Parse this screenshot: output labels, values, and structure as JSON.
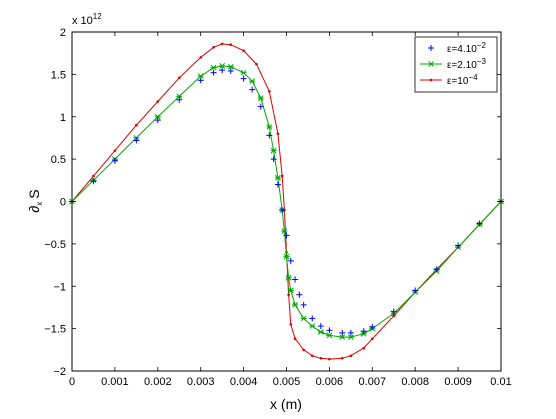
{
  "chart_data": {
    "type": "line",
    "title": "",
    "xlabel": "x (m)",
    "ylabel": "∂x S",
    "ylabel_main": "∂",
    "ylabel_sub": "x",
    "ylabel_rest": "S",
    "y_multiplier_base": "x 10",
    "y_multiplier_exp": "12",
    "xlim": [
      0,
      0.01
    ],
    "ylim": [
      -2,
      2
    ],
    "y_scale_factor": 1000000000000.0,
    "x_ticks": [
      0,
      0.001,
      0.002,
      0.003,
      0.004,
      0.005,
      0.006,
      0.007,
      0.008,
      0.009,
      0.01
    ],
    "x_tick_labels": [
      "0",
      "0.001",
      "0.002",
      "0.003",
      "0.004",
      "0.005",
      "0.006",
      "0.007",
      "0.008",
      "0.009",
      "0.01"
    ],
    "y_ticks": [
      -2,
      -1.5,
      -1,
      -0.5,
      0,
      0.5,
      1,
      1.5,
      2
    ],
    "y_tick_labels": [
      "−2",
      "−1.5",
      "−1",
      "−0.5",
      "0",
      "0.5",
      "1",
      "1.5",
      "2"
    ],
    "grid": false,
    "legend_position": "top-right",
    "series": [
      {
        "name": "ε=4.10−2",
        "legend_base": "ε=4.10",
        "legend_exp": "−2",
        "color": "#0000ff",
        "marker": "plus",
        "line": false,
        "x": [
          0,
          0.0005,
          0.001,
          0.0015,
          0.002,
          0.0025,
          0.003,
          0.0033,
          0.0035,
          0.0037,
          0.004,
          0.0042,
          0.0044,
          0.0046,
          0.0047,
          0.0048,
          0.0049,
          0.005,
          0.0051,
          0.0052,
          0.0053,
          0.0054,
          0.0056,
          0.0058,
          0.006,
          0.0063,
          0.0065,
          0.0068,
          0.007,
          0.0075,
          0.008,
          0.0085,
          0.009,
          0.0095,
          0.01
        ],
        "y": [
          0,
          0.24,
          0.48,
          0.72,
          0.96,
          1.2,
          1.43,
          1.52,
          1.55,
          1.54,
          1.45,
          1.32,
          1.12,
          0.78,
          0.5,
          0.2,
          -0.1,
          -0.4,
          -0.7,
          -0.92,
          -1.1,
          -1.22,
          -1.38,
          -1.47,
          -1.52,
          -1.55,
          -1.55,
          -1.53,
          -1.48,
          -1.3,
          -1.05,
          -0.8,
          -0.52,
          -0.26,
          0
        ]
      },
      {
        "name": "ε=2.10−3",
        "legend_base": "ε=2.10",
        "legend_exp": "−3",
        "color": "#00aa00",
        "marker": "x",
        "line": true,
        "x": [
          0,
          0.0005,
          0.001,
          0.0015,
          0.002,
          0.0025,
          0.003,
          0.0033,
          0.0035,
          0.0037,
          0.004,
          0.0042,
          0.0044,
          0.0046,
          0.0047,
          0.0048,
          0.0049,
          0.00495,
          0.005,
          0.00505,
          0.0051,
          0.0052,
          0.0054,
          0.0056,
          0.0058,
          0.006,
          0.0063,
          0.0065,
          0.0068,
          0.007,
          0.0075,
          0.008,
          0.0085,
          0.009,
          0.0095,
          0.01
        ],
        "y": [
          0,
          0.25,
          0.5,
          0.75,
          1.0,
          1.24,
          1.48,
          1.58,
          1.6,
          1.59,
          1.52,
          1.42,
          1.22,
          0.88,
          0.6,
          0.28,
          -0.1,
          -0.35,
          -0.65,
          -0.9,
          -1.05,
          -1.22,
          -1.38,
          -1.47,
          -1.54,
          -1.58,
          -1.6,
          -1.6,
          -1.56,
          -1.5,
          -1.32,
          -1.07,
          -0.82,
          -0.54,
          -0.27,
          0
        ]
      },
      {
        "name": "ε=10−4",
        "legend_base": "ε=10",
        "legend_exp": "−4",
        "color": "#dd0000",
        "marker": "dot",
        "line": true,
        "x": [
          0,
          0.0005,
          0.001,
          0.0015,
          0.002,
          0.0025,
          0.003,
          0.0033,
          0.0035,
          0.0037,
          0.004,
          0.0043,
          0.0046,
          0.0048,
          0.0049,
          0.00495,
          0.005,
          0.00505,
          0.0051,
          0.0052,
          0.0054,
          0.0056,
          0.0058,
          0.006,
          0.0063,
          0.0065,
          0.0068,
          0.007,
          0.0075,
          0.008,
          0.0085,
          0.009,
          0.0095,
          0.01
        ],
        "y": [
          0,
          0.3,
          0.6,
          0.9,
          1.18,
          1.46,
          1.7,
          1.82,
          1.86,
          1.85,
          1.78,
          1.62,
          1.3,
          0.8,
          0.3,
          -0.1,
          -0.6,
          -1.1,
          -1.45,
          -1.62,
          -1.75,
          -1.82,
          -1.85,
          -1.86,
          -1.85,
          -1.82,
          -1.73,
          -1.62,
          -1.35,
          -1.07,
          -0.8,
          -0.54,
          -0.27,
          0
        ]
      }
    ]
  }
}
